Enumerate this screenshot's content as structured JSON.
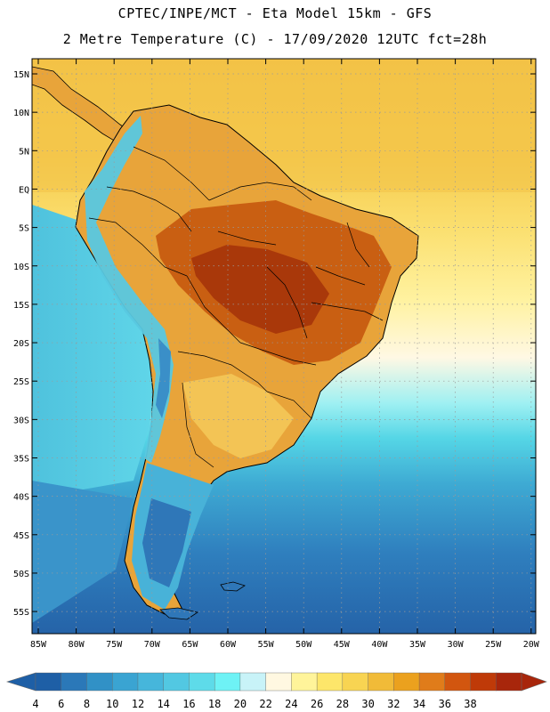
{
  "title_line1": "CPTEC/INPE/MCT  -   Eta Model 15km  -  GFS",
  "title_line2": "2 Metre Temperature (C) - 17/09/2020 12UTC fct=28h",
  "lat_labels": [
    "15N",
    "10N",
    "5N",
    "EQ",
    "5S",
    "10S",
    "15S",
    "20S",
    "25S",
    "30S",
    "35S",
    "40S",
    "45S",
    "50S",
    "55S"
  ],
  "lon_labels": [
    "85W",
    "80W",
    "75W",
    "70W",
    "65W",
    "60W",
    "55W",
    "50W",
    "45W",
    "40W",
    "35W",
    "30W",
    "25W",
    "20W"
  ],
  "colorbar": {
    "labels": [
      "4",
      "6",
      "8",
      "10",
      "12",
      "14",
      "16",
      "18",
      "20",
      "22",
      "24",
      "26",
      "28",
      "30",
      "32",
      "34",
      "36",
      "38"
    ],
    "colors": [
      "#1e5fa6",
      "#2b78b8",
      "#3191c6",
      "#3aa4d2",
      "#46b6db",
      "#52c8e2",
      "#5edbe9",
      "#6ef2f5",
      "#c8f3f8",
      "#fff8e1",
      "#fff49a",
      "#fde66a",
      "#f8d452",
      "#f1bb38",
      "#eba11e",
      "#e07c1a",
      "#d2560f",
      "#bf3a08",
      "#a8260b"
    ]
  },
  "map": {
    "background_ocean": "#3c86c2",
    "land_hot": "#b8440a",
    "land_warm": "#e39a2c",
    "land_mild": "#f5c95a",
    "andes_cold": "#54c3dc"
  }
}
